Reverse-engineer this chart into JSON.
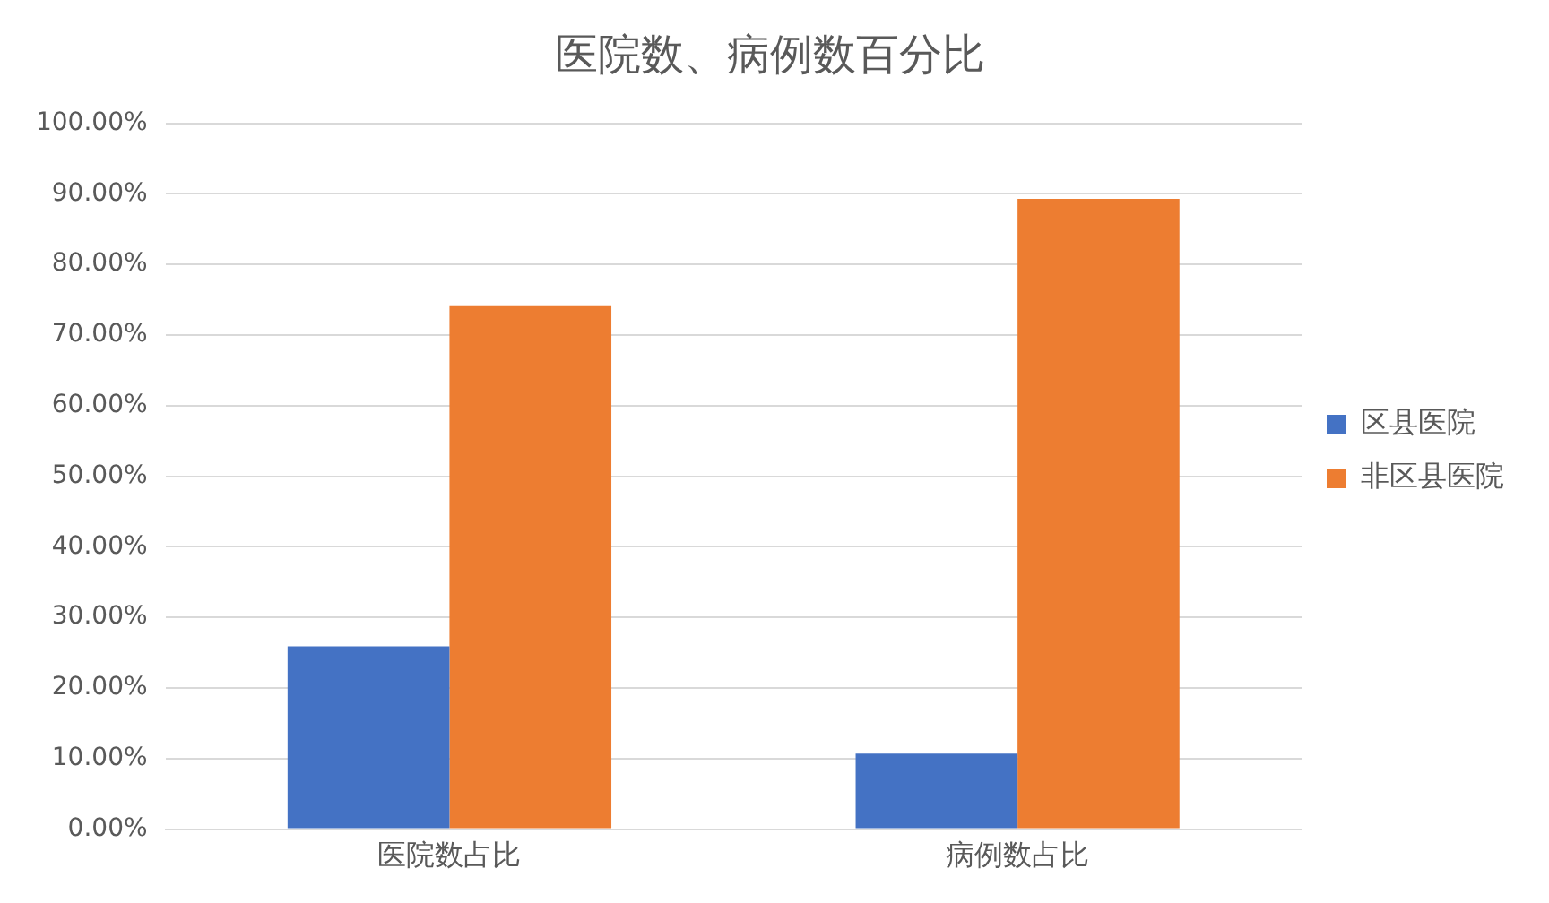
{
  "chart_data": {
    "type": "bar",
    "title": "医院数、病例数百分比",
    "categories": [
      "医院数占比",
      "病例数占比"
    ],
    "series": [
      {
        "name": "区县医院",
        "color": "#4472c4",
        "values": [
          25.9,
          10.7
        ]
      },
      {
        "name": "非区县医院",
        "color": "#ed7d31",
        "values": [
          74.1,
          89.3
        ]
      }
    ],
    "ylim": [
      0,
      100
    ],
    "yticks": [
      {
        "value": 0,
        "label": "0.00%"
      },
      {
        "value": 10,
        "label": "10.00%"
      },
      {
        "value": 20,
        "label": "20.00%"
      },
      {
        "value": 30,
        "label": "30.00%"
      },
      {
        "value": 40,
        "label": "40.00%"
      },
      {
        "value": 50,
        "label": "50.00%"
      },
      {
        "value": 60,
        "label": "60.00%"
      },
      {
        "value": 70,
        "label": "70.00%"
      },
      {
        "value": 80,
        "label": "80.00%"
      },
      {
        "value": 90,
        "label": "90.00%"
      },
      {
        "value": 100,
        "label": "100.00%"
      }
    ],
    "grid": "y",
    "legend": "right"
  }
}
